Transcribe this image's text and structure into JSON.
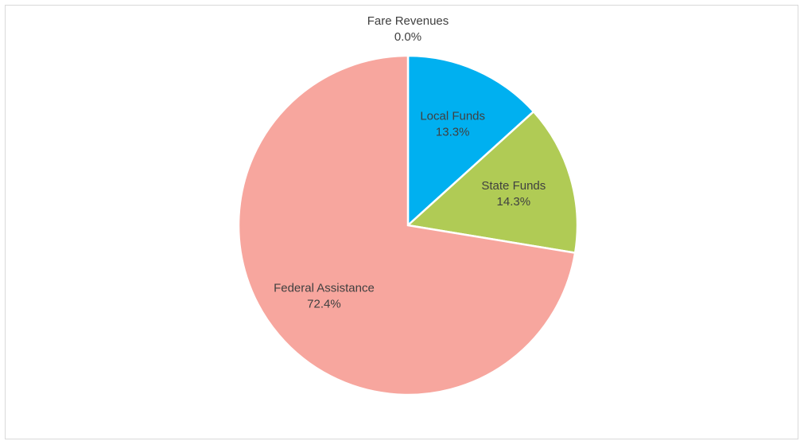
{
  "chart_data": {
    "type": "pie",
    "categories": [
      "Fare Revenues",
      "Local Funds",
      "State Funds",
      "Federal Assistance"
    ],
    "values": [
      0,
      13.3,
      14.3,
      72.4
    ],
    "value_labels": [
      "0.0%",
      "13.3%",
      "14.3%",
      "72.4%"
    ],
    "colors": [
      "#7f7f7f",
      "#00b0f0",
      "#b0cb55",
      "#f7a69e"
    ]
  }
}
